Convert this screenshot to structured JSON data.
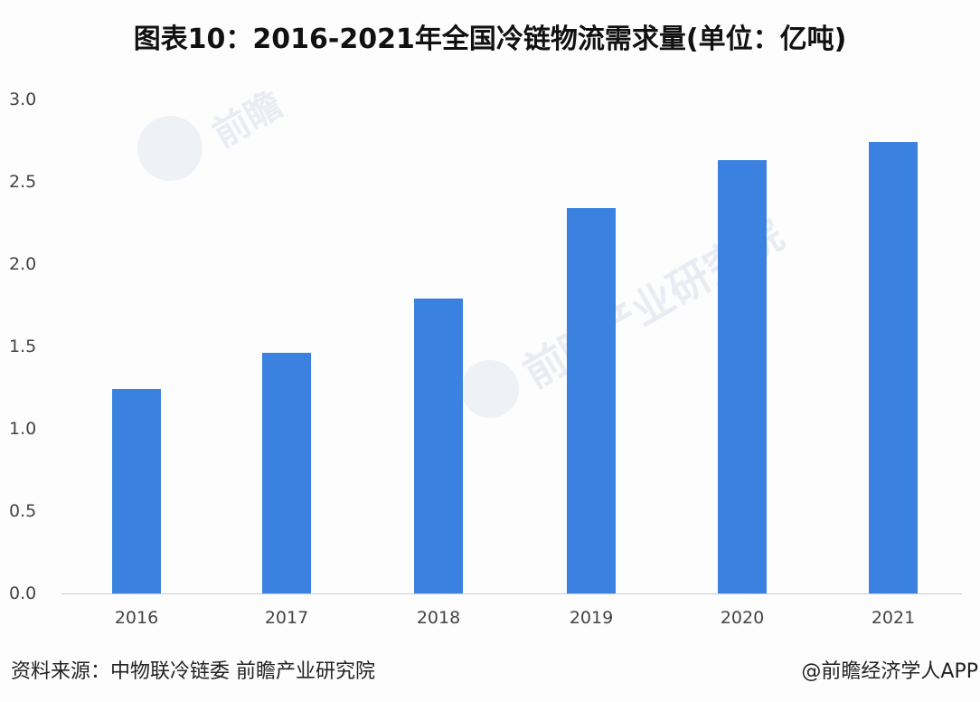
{
  "title": "图表10：2016-2021年全国冷链物流需求量(单位：亿吨)",
  "source": "资料来源：中物联冷链委 前瞻产业研究院",
  "credit": "@前瞻经济学人APP",
  "watermark": {
    "text": "前瞻产业研究院",
    "logo_text": "前瞻"
  },
  "colors": {
    "bar": "#3b82e0",
    "axis": "#c8cdd6",
    "text": "#444444"
  },
  "y_ticks": [
    "3.0",
    "2.5",
    "2.0",
    "1.5",
    "1.0",
    "0.5",
    "0.0"
  ],
  "x_ticks": [
    "2016",
    "2017",
    "2018",
    "2019",
    "2020",
    "2021"
  ],
  "chart_data": {
    "type": "bar",
    "title": "图表10：2016-2021年全国冷链物流需求量(单位：亿吨)",
    "categories": [
      "2016",
      "2017",
      "2018",
      "2019",
      "2020",
      "2021"
    ],
    "values": [
      1.24,
      1.46,
      1.79,
      2.34,
      2.63,
      2.74
    ],
    "xlabel": "",
    "ylabel": "亿吨",
    "ylim": [
      0,
      3.0
    ],
    "yticks": [
      0.0,
      0.5,
      1.0,
      1.5,
      2.0,
      2.5,
      3.0
    ],
    "grid": false,
    "legend": null
  }
}
